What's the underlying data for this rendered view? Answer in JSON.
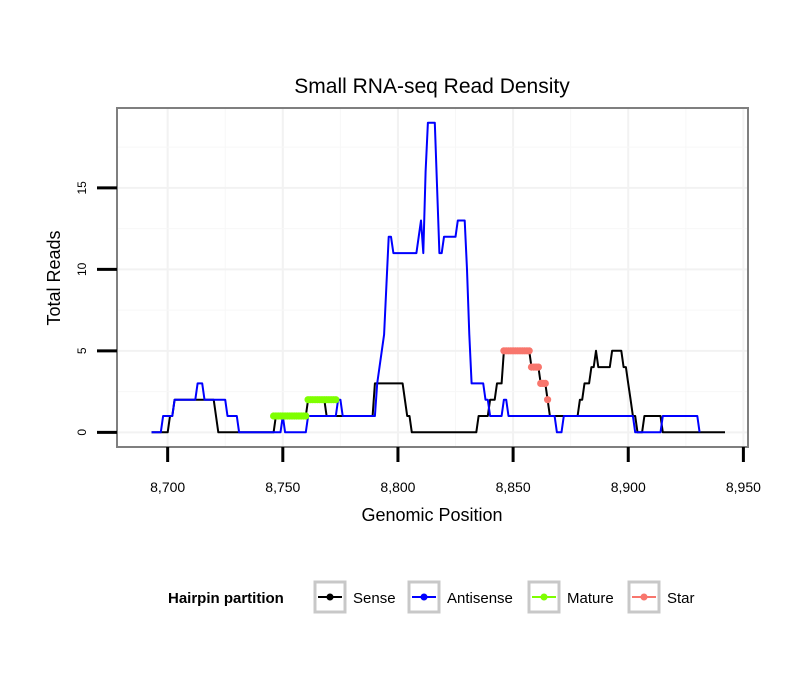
{
  "chart_data": {
    "type": "line",
    "title": "Small RNA-seq Read Density",
    "xlabel": "Genomic Position",
    "ylabel": "Total Reads",
    "xlim": [
      8678,
      8952
    ],
    "ylim": [
      -0.9,
      19.9
    ],
    "x_ticks": [
      8700,
      8750,
      8800,
      8850,
      8900,
      8950
    ],
    "x_tick_labels": [
      "8,700",
      "8,750",
      "8,800",
      "8,850",
      "8,900",
      "8,950"
    ],
    "y_ticks": [
      0,
      5,
      10,
      15
    ],
    "y_tick_labels": [
      "0",
      "5",
      "10",
      "15"
    ],
    "grid": true,
    "legend": {
      "title": "Hairpin partition",
      "position": "bottom",
      "entries": [
        "Sense",
        "Antisense",
        "Mature",
        "Star"
      ]
    },
    "series": [
      {
        "name": "Sense",
        "color": "#000000",
        "style": "line",
        "points": [
          [
            8693,
            0
          ],
          [
            8700,
            0
          ],
          [
            8701,
            1
          ],
          [
            8702,
            1
          ],
          [
            8703,
            2
          ],
          [
            8720,
            2
          ],
          [
            8721,
            1
          ],
          [
            8722,
            0
          ],
          [
            8746,
            0
          ],
          [
            8747,
            1
          ],
          [
            8760,
            1
          ],
          [
            8761,
            2
          ],
          [
            8768,
            2
          ],
          [
            8769,
            1
          ],
          [
            8789,
            1
          ],
          [
            8790,
            3
          ],
          [
            8802,
            3
          ],
          [
            8803,
            2
          ],
          [
            8804,
            1
          ],
          [
            8805,
            1
          ],
          [
            8806,
            0
          ],
          [
            8818,
            0
          ],
          [
            8834,
            0
          ],
          [
            8835,
            1
          ],
          [
            8839,
            1
          ],
          [
            8840,
            2
          ],
          [
            8842,
            2
          ],
          [
            8843,
            3
          ],
          [
            8845,
            3
          ],
          [
            8846,
            5
          ],
          [
            8857,
            5
          ],
          [
            8858,
            4
          ],
          [
            8861,
            4
          ],
          [
            8862,
            3
          ],
          [
            8864,
            3
          ],
          [
            8865,
            2
          ],
          [
            8866,
            1
          ],
          [
            8878,
            1
          ],
          [
            8879,
            2
          ],
          [
            8880,
            2
          ],
          [
            8881,
            3
          ],
          [
            8883,
            3
          ],
          [
            8884,
            4
          ],
          [
            8885,
            4
          ],
          [
            8886,
            5
          ],
          [
            8887,
            4
          ],
          [
            8892,
            4
          ],
          [
            8893,
            5
          ],
          [
            8897,
            5
          ],
          [
            8898,
            4
          ],
          [
            8899,
            4
          ],
          [
            8900,
            3
          ],
          [
            8901,
            2
          ],
          [
            8902,
            1
          ],
          [
            8903,
            1
          ],
          [
            8904,
            0
          ],
          [
            8906,
            0
          ],
          [
            8907,
            1
          ],
          [
            8914,
            1
          ],
          [
            8915,
            0
          ],
          [
            8942,
            0
          ]
        ]
      },
      {
        "name": "Antisense",
        "color": "#0000ff",
        "style": "line",
        "points": [
          [
            8693,
            0
          ],
          [
            8697,
            0
          ],
          [
            8698,
            1
          ],
          [
            8702,
            1
          ],
          [
            8703,
            2
          ],
          [
            8712,
            2
          ],
          [
            8713,
            3
          ],
          [
            8715,
            3
          ],
          [
            8716,
            2
          ],
          [
            8725,
            2
          ],
          [
            8726,
            1
          ],
          [
            8730,
            1
          ],
          [
            8731,
            0
          ],
          [
            8749,
            0
          ],
          [
            8750,
            1
          ],
          [
            8751,
            0
          ],
          [
            8760,
            0
          ],
          [
            8761,
            1
          ],
          [
            8773,
            1
          ],
          [
            8774,
            2
          ],
          [
            8775,
            2
          ],
          [
            8776,
            1
          ],
          [
            8790,
            1
          ],
          [
            8791,
            3
          ],
          [
            8792,
            4
          ],
          [
            8793,
            5
          ],
          [
            8794,
            6
          ],
          [
            8795,
            9
          ],
          [
            8796,
            12
          ],
          [
            8797,
            12
          ],
          [
            8798,
            11
          ],
          [
            8808,
            11
          ],
          [
            8809,
            12
          ],
          [
            8810,
            13
          ],
          [
            8811,
            11
          ],
          [
            8812,
            16
          ],
          [
            8813,
            19
          ],
          [
            8816,
            19
          ],
          [
            8817,
            15
          ],
          [
            8818,
            11
          ],
          [
            8819,
            11
          ],
          [
            8820,
            12
          ],
          [
            8822,
            12
          ],
          [
            8823,
            12
          ],
          [
            8825,
            12
          ],
          [
            8826,
            13
          ],
          [
            8829,
            13
          ],
          [
            8830,
            10
          ],
          [
            8831,
            6
          ],
          [
            8832,
            3
          ],
          [
            8837,
            3
          ],
          [
            8838,
            2
          ],
          [
            8839,
            2
          ],
          [
            8840,
            1
          ],
          [
            8845,
            1
          ],
          [
            8846,
            2
          ],
          [
            8847,
            2
          ],
          [
            8848,
            1
          ],
          [
            8868,
            1
          ],
          [
            8869,
            0
          ],
          [
            8871,
            0
          ],
          [
            8872,
            1
          ],
          [
            8902,
            1
          ],
          [
            8903,
            0
          ],
          [
            8914,
            0
          ],
          [
            8915,
            1
          ],
          [
            8930,
            1
          ],
          [
            8931,
            0
          ]
        ]
      },
      {
        "name": "Mature",
        "color": "#7fff00",
        "style": "points",
        "points": [
          [
            8746,
            1
          ],
          [
            8747,
            1
          ],
          [
            8748,
            1
          ],
          [
            8749,
            1
          ],
          [
            8750,
            1
          ],
          [
            8751,
            1
          ],
          [
            8752,
            1
          ],
          [
            8753,
            1
          ],
          [
            8754,
            1
          ],
          [
            8755,
            1
          ],
          [
            8756,
            1
          ],
          [
            8757,
            1
          ],
          [
            8758,
            1
          ],
          [
            8759,
            1
          ],
          [
            8760,
            1
          ],
          [
            8761,
            2
          ],
          [
            8762,
            2
          ],
          [
            8763,
            2
          ],
          [
            8764,
            2
          ],
          [
            8765,
            2
          ],
          [
            8766,
            2
          ],
          [
            8767,
            2
          ],
          [
            8768,
            2
          ],
          [
            8769,
            2
          ],
          [
            8770,
            2
          ],
          [
            8771,
            2
          ],
          [
            8772,
            2
          ],
          [
            8773,
            2
          ]
        ]
      },
      {
        "name": "Star",
        "color": "#f8766d",
        "style": "points",
        "points": [
          [
            8846,
            5
          ],
          [
            8847,
            5
          ],
          [
            8848,
            5
          ],
          [
            8849,
            5
          ],
          [
            8850,
            5
          ],
          [
            8851,
            5
          ],
          [
            8852,
            5
          ],
          [
            8853,
            5
          ],
          [
            8854,
            5
          ],
          [
            8855,
            5
          ],
          [
            8856,
            5
          ],
          [
            8857,
            5
          ],
          [
            8858,
            4
          ],
          [
            8859,
            4
          ],
          [
            8860,
            4
          ],
          [
            8861,
            4
          ],
          [
            8862,
            3
          ],
          [
            8863,
            3
          ],
          [
            8864,
            3
          ],
          [
            8865,
            2
          ]
        ]
      }
    ]
  }
}
